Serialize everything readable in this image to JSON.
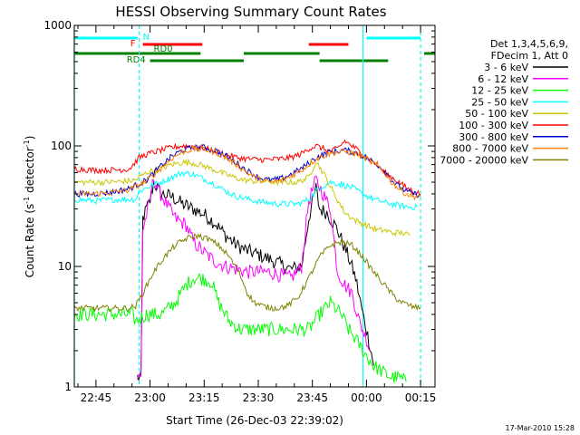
{
  "chart_data": {
    "type": "line",
    "title": "HESSI Observing Summary Count Rates",
    "xlabel": "Start Time (26-Dec-03 22:39:02)",
    "ylabel_main": "Count Rate (s",
    "ylabel_sup1": "-1",
    "ylabel_mid": " detector",
    "ylabel_sup2": "-1",
    "ylabel_end": ")",
    "y_scale": "log",
    "ylim": [
      1,
      1000
    ],
    "xlim_minutes": [
      0,
      100
    ],
    "x_ticks": [
      {
        "label": "22:45",
        "min": 6
      },
      {
        "label": "23:00",
        "min": 21
      },
      {
        "label": "23:15",
        "min": 36
      },
      {
        "label": "23:30",
        "min": 51
      },
      {
        "label": "23:45",
        "min": 66
      },
      {
        "label": "00:00",
        "min": 81
      },
      {
        "label": "00:15",
        "min": 96
      }
    ],
    "y_ticks": [
      {
        "label": "1",
        "value": 1
      },
      {
        "label": "10",
        "value": 10
      },
      {
        "label": "100",
        "value": 100
      },
      {
        "label": "1000",
        "value": 1000
      }
    ],
    "legend_header": [
      "Det 1,3,4,5,6,9,",
      "FDecim 1, Att 0"
    ],
    "legend_placement": "right",
    "series": [
      {
        "name": "3 - 6 keV",
        "color": "#000000",
        "points": [
          [
            17.5,
            1.2
          ],
          [
            18.5,
            1.2
          ],
          [
            19,
            25
          ],
          [
            20,
            30
          ],
          [
            21,
            35
          ],
          [
            22,
            50
          ],
          [
            24,
            40
          ],
          [
            27,
            38
          ],
          [
            30,
            33
          ],
          [
            33,
            30
          ],
          [
            36,
            27
          ],
          [
            39,
            23
          ],
          [
            42,
            18
          ],
          [
            45,
            15
          ],
          [
            48,
            13.5
          ],
          [
            51,
            12.5
          ],
          [
            54,
            11.5
          ],
          [
            57,
            10.5
          ],
          [
            60,
            9.5
          ],
          [
            63,
            10
          ],
          [
            65,
            25
          ],
          [
            67,
            45
          ],
          [
            68,
            30
          ],
          [
            70,
            28
          ],
          [
            73,
            20
          ],
          [
            76,
            12
          ],
          [
            78,
            8
          ],
          [
            80,
            4
          ],
          [
            82,
            2.2
          ],
          [
            83,
            1.5
          ]
        ]
      },
      {
        "name": "6 - 12 keV",
        "color": "#ff00ff",
        "points": [
          [
            17.5,
            1.2
          ],
          [
            18.5,
            1.2
          ],
          [
            19,
            20
          ],
          [
            21,
            35
          ],
          [
            22,
            55
          ],
          [
            23,
            45
          ],
          [
            25,
            35
          ],
          [
            28,
            25
          ],
          [
            31,
            22
          ],
          [
            33,
            16
          ],
          [
            36,
            13
          ],
          [
            39,
            11
          ],
          [
            42,
            10
          ],
          [
            45,
            9.5
          ],
          [
            48,
            9
          ],
          [
            51,
            9
          ],
          [
            54,
            9
          ],
          [
            57,
            8.5
          ],
          [
            60,
            8
          ],
          [
            63,
            10
          ],
          [
            65,
            35
          ],
          [
            67,
            52
          ],
          [
            69,
            40
          ],
          [
            71,
            30
          ],
          [
            73,
            9
          ],
          [
            75,
            7
          ],
          [
            77,
            6
          ],
          [
            79,
            3.5
          ],
          [
            81,
            2.5
          ],
          [
            82,
            2
          ]
        ]
      },
      {
        "name": "12 - 25 keV",
        "color": "#00ff00",
        "points": [
          [
            0,
            4
          ],
          [
            16,
            4
          ],
          [
            17,
            3.5
          ],
          [
            20,
            4
          ],
          [
            24,
            4
          ],
          [
            28,
            5
          ],
          [
            31,
            7
          ],
          [
            33,
            8
          ],
          [
            35,
            8
          ],
          [
            38,
            7.5
          ],
          [
            40,
            5
          ],
          [
            43,
            3.5
          ],
          [
            46,
            3
          ],
          [
            50,
            3
          ],
          [
            53,
            3
          ],
          [
            56,
            3
          ],
          [
            59,
            3
          ],
          [
            62,
            3
          ],
          [
            65,
            3
          ],
          [
            68,
            4
          ],
          [
            71,
            5
          ],
          [
            74,
            4
          ],
          [
            76,
            3
          ],
          [
            78,
            2.5
          ],
          [
            80,
            2
          ],
          [
            83,
            1.5
          ],
          [
            86,
            1.3
          ],
          [
            88,
            1.2
          ],
          [
            90,
            1.2
          ],
          [
            92,
            1.1
          ]
        ]
      },
      {
        "name": "25 - 50 keV",
        "color": "#00ffff",
        "points": [
          [
            0,
            36
          ],
          [
            6,
            35
          ],
          [
            12,
            36
          ],
          [
            17,
            36
          ],
          [
            18,
            42
          ],
          [
            20,
            45
          ],
          [
            24,
            50
          ],
          [
            27,
            55
          ],
          [
            30,
            60
          ],
          [
            33,
            58
          ],
          [
            36,
            53
          ],
          [
            39,
            48
          ],
          [
            42,
            42
          ],
          [
            45,
            38
          ],
          [
            47,
            37
          ],
          [
            50,
            35
          ],
          [
            53,
            34
          ],
          [
            56,
            33
          ],
          [
            59,
            33
          ],
          [
            62,
            33
          ],
          [
            65,
            36
          ],
          [
            68,
            45
          ],
          [
            71,
            50
          ],
          [
            74,
            48
          ],
          [
            77,
            45
          ],
          [
            80,
            40
          ],
          [
            83,
            36
          ],
          [
            86,
            34
          ],
          [
            88,
            33
          ],
          [
            90,
            32
          ],
          [
            93,
            31
          ],
          [
            95,
            31
          ]
        ]
      },
      {
        "name": "50 - 100 keV",
        "color": "#c8c800",
        "points": [
          [
            0,
            50
          ],
          [
            8,
            50
          ],
          [
            15,
            51
          ],
          [
            17,
            52
          ],
          [
            18,
            55
          ],
          [
            20,
            60
          ],
          [
            24,
            65
          ],
          [
            27,
            70
          ],
          [
            30,
            73
          ],
          [
            33,
            72
          ],
          [
            36,
            68
          ],
          [
            39,
            63
          ],
          [
            42,
            58
          ],
          [
            45,
            54
          ],
          [
            47,
            52
          ],
          [
            50,
            51
          ],
          [
            53,
            51
          ],
          [
            56,
            50
          ],
          [
            59,
            50
          ],
          [
            62,
            50
          ],
          [
            65,
            55
          ],
          [
            67,
            75
          ],
          [
            69,
            60
          ],
          [
            72,
            40
          ],
          [
            75,
            28
          ],
          [
            78,
            24
          ],
          [
            81,
            22
          ],
          [
            84,
            20
          ],
          [
            86,
            20
          ],
          [
            88,
            19
          ],
          [
            91,
            19
          ],
          [
            93,
            18
          ]
        ]
      },
      {
        "name": "100 - 300 keV",
        "color": "#ff0000",
        "points": [
          [
            0,
            65
          ],
          [
            5,
            63
          ],
          [
            10,
            63
          ],
          [
            15,
            64
          ],
          [
            16,
            68
          ],
          [
            18,
            80
          ],
          [
            20,
            85
          ],
          [
            24,
            92
          ],
          [
            27,
            97
          ],
          [
            30,
            100
          ],
          [
            33,
            99
          ],
          [
            36,
            96
          ],
          [
            39,
            90
          ],
          [
            42,
            85
          ],
          [
            45,
            80
          ],
          [
            48,
            78
          ],
          [
            51,
            77
          ],
          [
            54,
            77
          ],
          [
            57,
            78
          ],
          [
            60,
            80
          ],
          [
            63,
            86
          ],
          [
            65,
            95
          ],
          [
            67,
            100
          ],
          [
            69,
            95
          ],
          [
            71,
            90
          ],
          [
            73,
            95
          ],
          [
            75,
            110
          ],
          [
            78,
            95
          ],
          [
            81,
            80
          ],
          [
            84,
            70
          ],
          [
            86,
            60
          ],
          [
            88,
            55
          ],
          [
            90,
            50
          ],
          [
            92,
            45
          ],
          [
            94,
            42
          ],
          [
            96,
            40
          ]
        ]
      },
      {
        "name": "300 - 800 keV",
        "color": "#0000cc",
        "points": [
          [
            0,
            40
          ],
          [
            5,
            40
          ],
          [
            10,
            41
          ],
          [
            15,
            44
          ],
          [
            17,
            47
          ],
          [
            20,
            52
          ],
          [
            24,
            68
          ],
          [
            27,
            82
          ],
          [
            30,
            92
          ],
          [
            33,
            97
          ],
          [
            36,
            97
          ],
          [
            39,
            92
          ],
          [
            42,
            82
          ],
          [
            45,
            72
          ],
          [
            48,
            62
          ],
          [
            51,
            55
          ],
          [
            54,
            52
          ],
          [
            57,
            53
          ],
          [
            60,
            58
          ],
          [
            63,
            65
          ],
          [
            65,
            72
          ],
          [
            67,
            80
          ],
          [
            70,
            87
          ],
          [
            72,
            90
          ],
          [
            75,
            92
          ],
          [
            78,
            88
          ],
          [
            81,
            80
          ],
          [
            84,
            70
          ],
          [
            86,
            62
          ],
          [
            88,
            52
          ],
          [
            90,
            46
          ],
          [
            92,
            42
          ],
          [
            94,
            40
          ],
          [
            96,
            39
          ]
        ]
      },
      {
        "name": "800 - 7000 keV",
        "color": "#ff8000",
        "points": [
          [
            0,
            40
          ],
          [
            5,
            40
          ],
          [
            10,
            41
          ],
          [
            15,
            43
          ],
          [
            17,
            46
          ],
          [
            20,
            51
          ],
          [
            24,
            65
          ],
          [
            27,
            79
          ],
          [
            30,
            89
          ],
          [
            33,
            94
          ],
          [
            36,
            94
          ],
          [
            39,
            89
          ],
          [
            42,
            80
          ],
          [
            45,
            70
          ],
          [
            48,
            60
          ],
          [
            51,
            53
          ],
          [
            54,
            50
          ],
          [
            57,
            51
          ],
          [
            60,
            56
          ],
          [
            63,
            63
          ],
          [
            65,
            70
          ],
          [
            67,
            78
          ],
          [
            70,
            85
          ],
          [
            72,
            88
          ],
          [
            75,
            90
          ],
          [
            78,
            86
          ],
          [
            81,
            78
          ],
          [
            84,
            68
          ],
          [
            86,
            60
          ],
          [
            88,
            50
          ],
          [
            90,
            44
          ],
          [
            92,
            40
          ],
          [
            94,
            38
          ],
          [
            96,
            38
          ]
        ]
      },
      {
        "name": "7000 - 20000 keV",
        "color": "#808000",
        "points": [
          [
            0,
            4.5
          ],
          [
            6,
            4.5
          ],
          [
            12,
            4.5
          ],
          [
            15,
            4.5
          ],
          [
            17,
            4.7
          ],
          [
            19,
            6
          ],
          [
            22,
            9
          ],
          [
            25,
            12
          ],
          [
            28,
            15
          ],
          [
            31,
            17
          ],
          [
            34,
            18
          ],
          [
            37,
            17
          ],
          [
            40,
            15
          ],
          [
            43,
            12
          ],
          [
            46,
            8.5
          ],
          [
            48,
            6
          ],
          [
            50,
            5
          ],
          [
            53,
            4.6
          ],
          [
            56,
            4.5
          ],
          [
            59,
            4.7
          ],
          [
            62,
            5.5
          ],
          [
            65,
            8
          ],
          [
            68,
            12
          ],
          [
            71,
            15
          ],
          [
            74,
            16
          ],
          [
            77,
            15
          ],
          [
            80,
            12
          ],
          [
            83,
            9
          ],
          [
            86,
            7
          ],
          [
            89,
            5.5
          ],
          [
            91,
            5
          ],
          [
            94,
            4.6
          ],
          [
            96,
            4.5
          ]
        ]
      }
    ],
    "flag_bars": [
      {
        "label": "N",
        "color": "#00ffff",
        "label_min": 19,
        "segments": [
          [
            0,
            17.5
          ],
          [
            81,
            96
          ]
        ]
      },
      {
        "label": "F",
        "color": "#ff0000",
        "label_min": 15.5,
        "segments": [
          [
            19,
            35.5
          ],
          [
            65,
            76
          ]
        ]
      },
      {
        "label": "RD0",
        "color": "#008000",
        "label_min": 22,
        "segments": [
          [
            0,
            35
          ],
          [
            47,
            68
          ],
          [
            97,
            100
          ]
        ]
      },
      {
        "label": "RD4",
        "color": "#008000",
        "label_min": 14.5,
        "segments": [
          [
            21,
            47
          ],
          [
            68,
            87
          ]
        ]
      }
    ],
    "cyan_vlines": [
      {
        "min": 0,
        "style": "solid"
      },
      {
        "min": 18,
        "style": "dashed"
      },
      {
        "min": 80,
        "style": "solid"
      },
      {
        "min": 96,
        "style": "dashed"
      }
    ]
  },
  "footer": {
    "timestamp": "17-Mar-2010 15:28"
  }
}
